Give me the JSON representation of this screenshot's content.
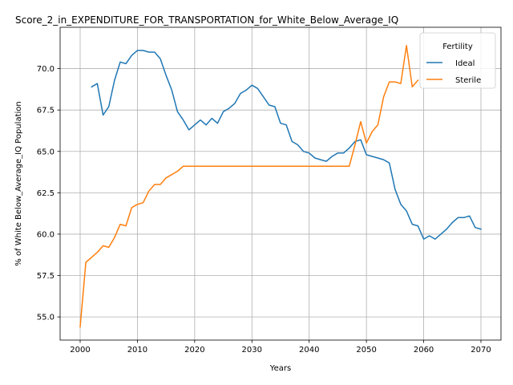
{
  "chart_data": {
    "type": "line",
    "title": "Score_2_in_EXPENDITURE_FOR_TRANSPORTATION_for_White_Below_Average_IQ",
    "xlabel": "Years",
    "ylabel": "% of White Below_Average_IQ Population",
    "xlim": [
      1996.5,
      2073.5
    ],
    "ylim": [
      53.6,
      72.5
    ],
    "xticks": [
      2000,
      2010,
      2020,
      2030,
      2040,
      2050,
      2060,
      2070
    ],
    "yticks": [
      55.0,
      57.5,
      60.0,
      62.5,
      65.0,
      67.5,
      70.0
    ],
    "xtick_labels": [
      "2000",
      "2010",
      "2020",
      "2030",
      "2040",
      "2050",
      "2060",
      "2070"
    ],
    "ytick_labels": [
      "55.0",
      "57.5",
      "60.0",
      "62.5",
      "65.0",
      "67.5",
      "70.0"
    ],
    "grid": true,
    "legend": {
      "title": "Fertility",
      "position": "top-right"
    },
    "series": [
      {
        "name": "Ideal",
        "color": "#1f77b4",
        "x": [
          2002,
          2003,
          2004,
          2005,
          2006,
          2007,
          2008,
          2009,
          2010,
          2011,
          2012,
          2013,
          2014,
          2015,
          2016,
          2017,
          2018,
          2019,
          2020,
          2021,
          2022,
          2023,
          2024,
          2025,
          2026,
          2027,
          2028,
          2029,
          2030,
          2031,
          2032,
          2033,
          2034,
          2035,
          2036,
          2037,
          2038,
          2039,
          2040,
          2041,
          2042,
          2043,
          2044,
          2045,
          2046,
          2047,
          2048,
          2049,
          2050,
          2051,
          2052,
          2053,
          2054,
          2055,
          2056,
          2057,
          2058,
          2059,
          2060,
          2061,
          2062,
          2063,
          2064,
          2065,
          2066,
          2067,
          2068,
          2069,
          2070
        ],
        "y": [
          68.9,
          69.1,
          67.2,
          67.7,
          69.3,
          70.4,
          70.3,
          70.8,
          71.1,
          71.1,
          71.0,
          71.0,
          70.6,
          69.6,
          68.7,
          67.4,
          66.9,
          66.3,
          66.6,
          66.9,
          66.6,
          67.0,
          66.7,
          67.4,
          67.6,
          67.9,
          68.5,
          68.7,
          69.0,
          68.8,
          68.3,
          67.8,
          67.7,
          66.7,
          66.6,
          65.6,
          65.4,
          65.0,
          64.9,
          64.6,
          64.5,
          64.4,
          64.7,
          64.9,
          64.9,
          65.2,
          65.6,
          65.7,
          64.8,
          64.7,
          64.6,
          64.5,
          64.3,
          62.7,
          61.8,
          61.4,
          60.6,
          60.5,
          59.7,
          59.9,
          59.7,
          60.0,
          60.3,
          60.7,
          61.0,
          61.0,
          61.1,
          60.4,
          60.3
        ]
      },
      {
        "name": "Sterile",
        "color": "#ff7f0e",
        "x": [
          2000,
          2001,
          2002,
          2003,
          2004,
          2005,
          2006,
          2007,
          2008,
          2009,
          2010,
          2011,
          2012,
          2013,
          2014,
          2015,
          2016,
          2017,
          2018,
          2019,
          2020,
          2021,
          2022,
          2023,
          2024,
          2025,
          2026,
          2027,
          2028,
          2029,
          2030,
          2031,
          2032,
          2033,
          2034,
          2035,
          2036,
          2037,
          2038,
          2039,
          2040,
          2041,
          2042,
          2043,
          2044,
          2045,
          2046,
          2047,
          2048,
          2049,
          2050,
          2051,
          2052,
          2053,
          2054,
          2055,
          2056,
          2057,
          2058,
          2059
        ],
        "y": [
          54.4,
          58.3,
          58.6,
          58.9,
          59.3,
          59.2,
          59.8,
          60.6,
          60.5,
          61.6,
          61.8,
          61.9,
          62.6,
          63.0,
          63.0,
          63.4,
          63.6,
          63.8,
          64.1,
          64.1,
          64.1,
          64.1,
          64.1,
          64.1,
          64.1,
          64.1,
          64.1,
          64.1,
          64.1,
          64.1,
          64.1,
          64.1,
          64.1,
          64.1,
          64.1,
          64.1,
          64.1,
          64.1,
          64.1,
          64.1,
          64.1,
          64.1,
          64.1,
          64.1,
          64.1,
          64.1,
          64.1,
          64.1,
          65.4,
          66.8,
          65.5,
          66.2,
          66.6,
          68.3,
          69.2,
          69.2,
          69.1,
          71.4,
          68.9,
          69.3
        ]
      }
    ]
  }
}
